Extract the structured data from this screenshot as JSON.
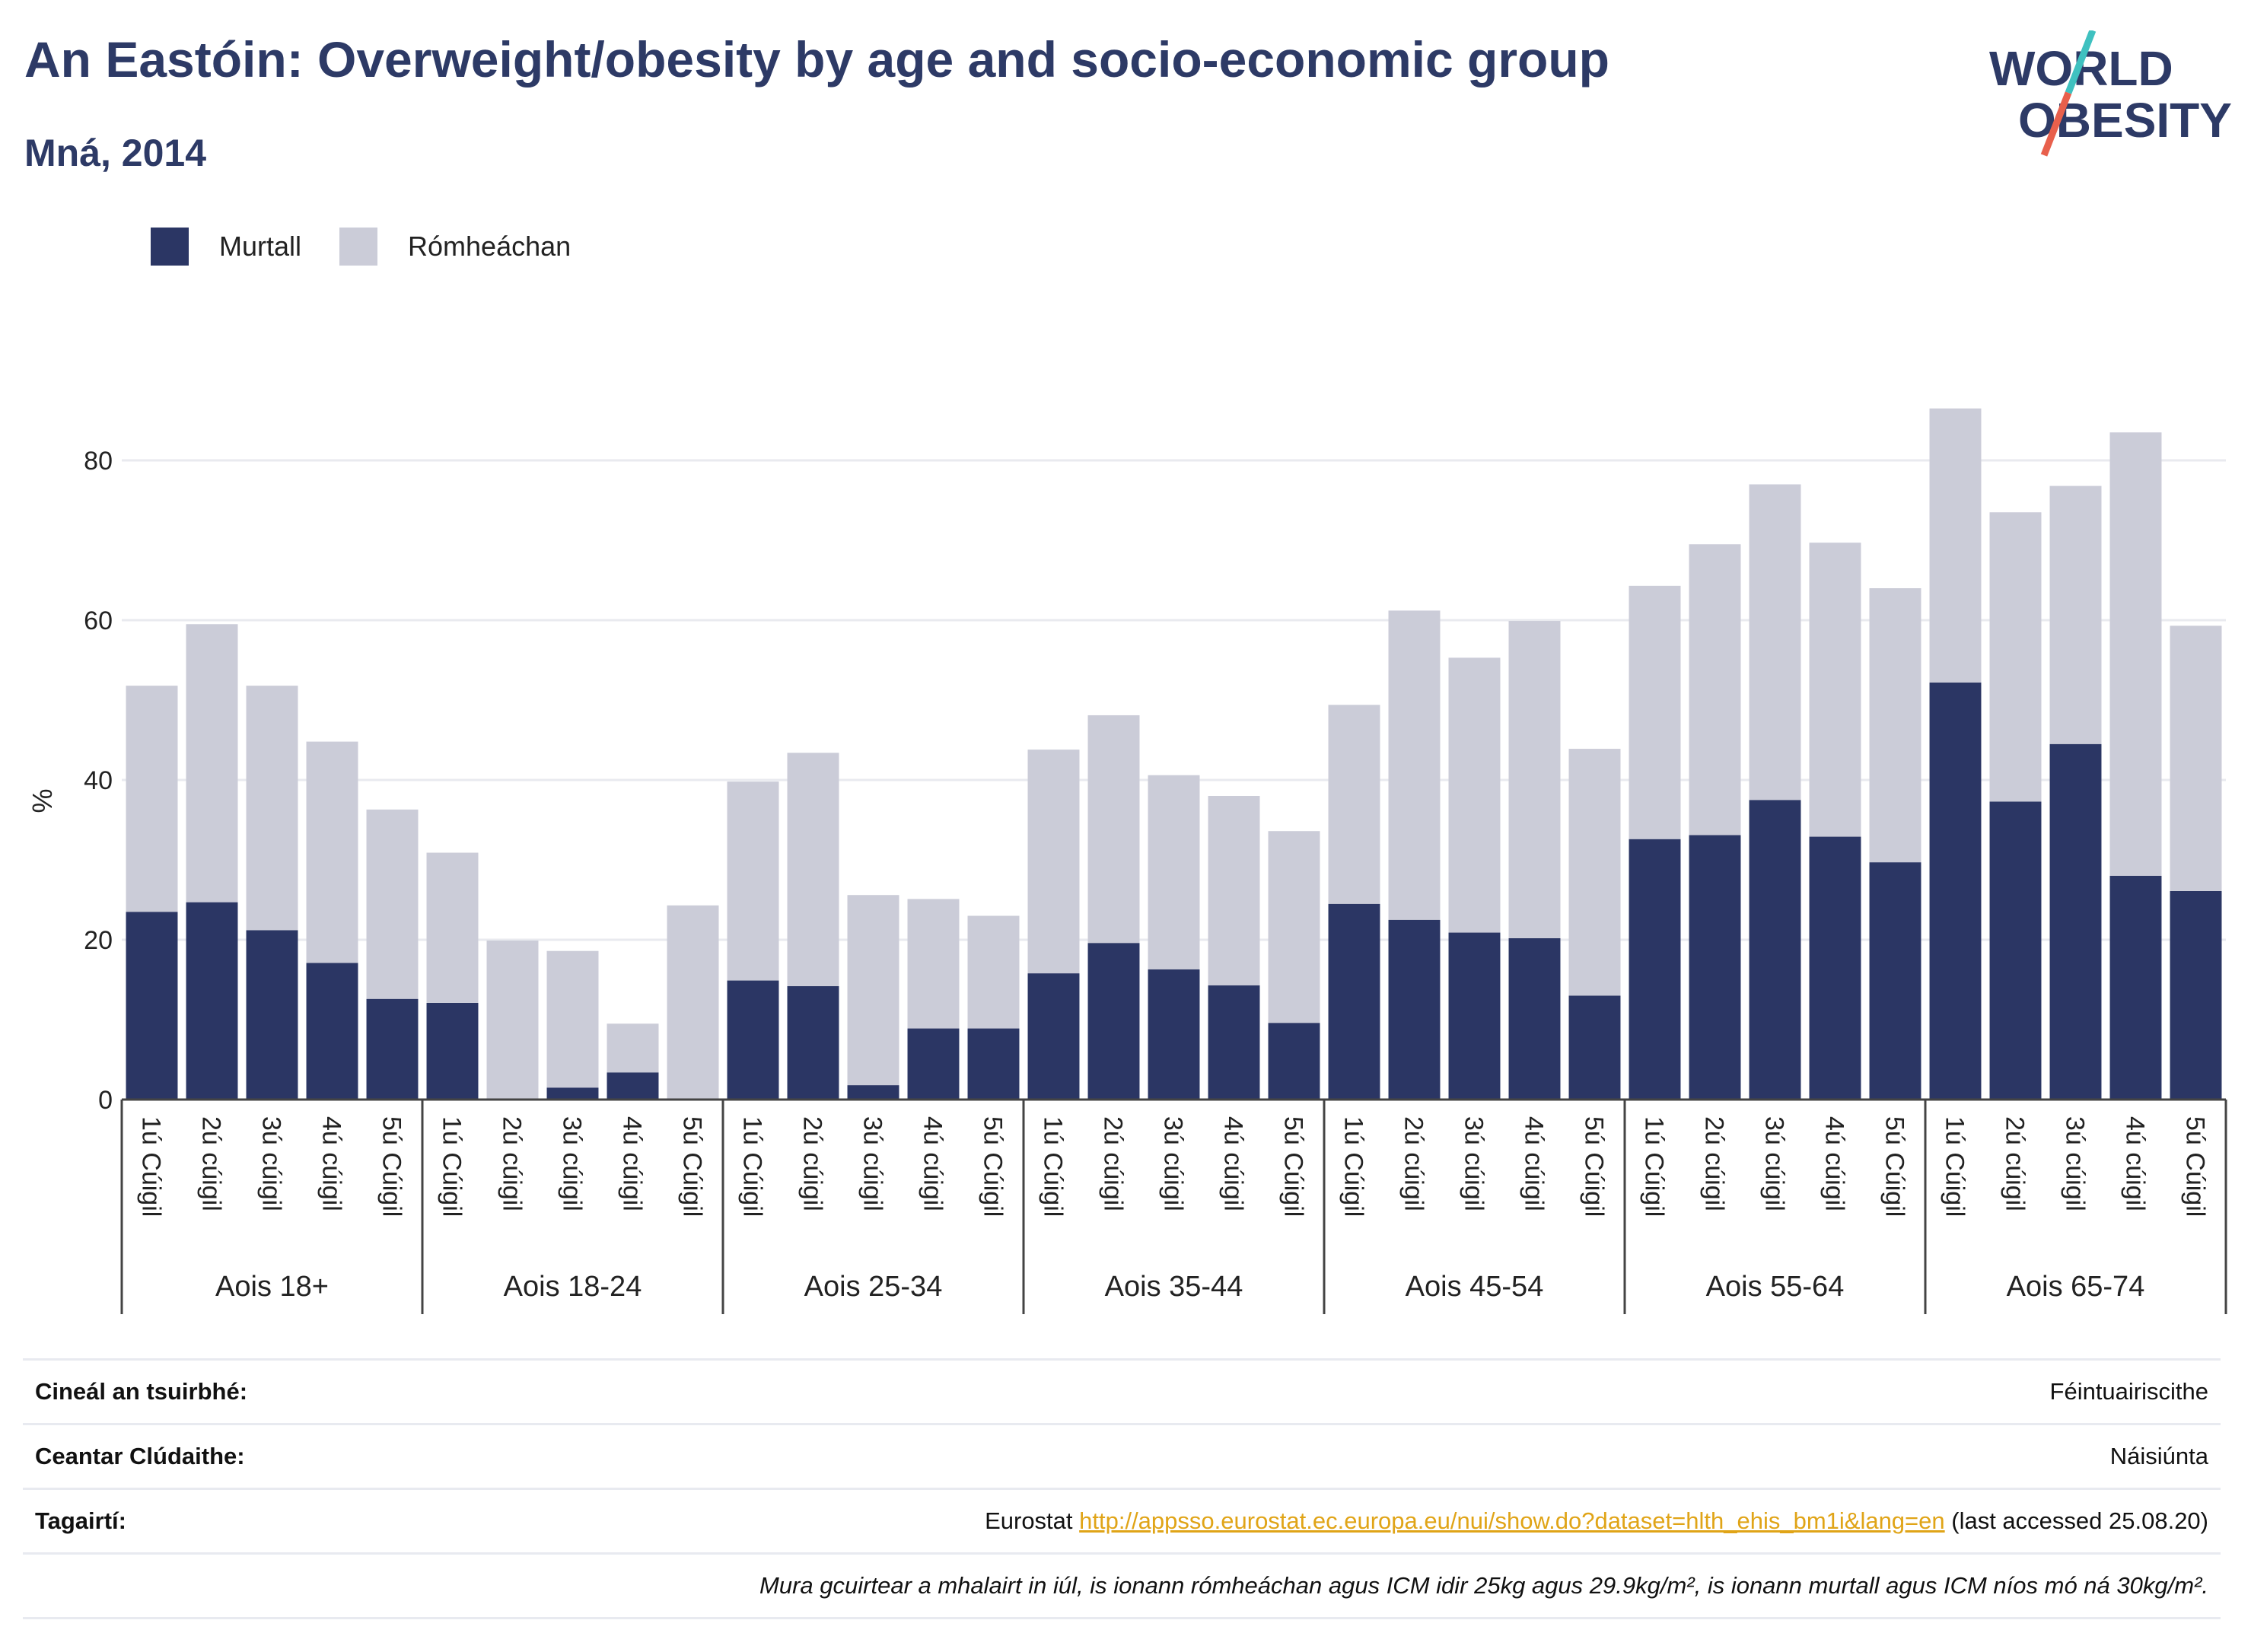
{
  "header": {
    "title": "An Eastóin: Overweight/obesity by age and socio-economic group",
    "subtitle": "Mná, 2014"
  },
  "logo": {
    "line1": "WORLD",
    "line2": "OBESITY",
    "slash_colors": [
      "#3fc1c0",
      "#e8604c"
    ]
  },
  "colors": {
    "obese": "#2b3664",
    "overweight": "#cbccd8",
    "text": "#2d3a66"
  },
  "legend": [
    {
      "label": "Murtall",
      "color": "#2b3664"
    },
    {
      "label": "Rómheáchan",
      "color": "#cbccd8"
    }
  ],
  "chart_data": {
    "type": "bar",
    "stacked": true,
    "ylabel": "%",
    "ylim": [
      0,
      90
    ],
    "yticks": [
      0,
      20,
      40,
      60,
      80
    ],
    "grid": true,
    "legend_position": "top-left",
    "groups": [
      {
        "label": "Aois 18+",
        "categories": [
          "1ú Cúigil",
          "2ú cúigil",
          "3ú cúigil",
          "4ú cúigil",
          "5ú Cúigil"
        ]
      },
      {
        "label": "Aois 18-24",
        "categories": [
          "1ú Cúigil",
          "2ú cúigil",
          "3ú cúigil",
          "4ú cúigil",
          "5ú Cúigil"
        ]
      },
      {
        "label": "Aois 25-34",
        "categories": [
          "1ú Cúigil",
          "2ú cúigil",
          "3ú cúigil",
          "4ú cúigil",
          "5ú Cúigil"
        ]
      },
      {
        "label": "Aois 35-44",
        "categories": [
          "1ú Cúigil",
          "2ú cúigil",
          "3ú cúigil",
          "4ú cúigil",
          "5ú Cúigil"
        ]
      },
      {
        "label": "Aois 45-54",
        "categories": [
          "1ú Cúigil",
          "2ú cúigil",
          "3ú cúigil",
          "4ú cúigil",
          "5ú Cúigil"
        ]
      },
      {
        "label": "Aois 55-64",
        "categories": [
          "1ú Cúigil",
          "2ú cúigil",
          "3ú cúigil",
          "4ú cúigil",
          "5ú Cúigil"
        ]
      },
      {
        "label": "Aois 65-74",
        "categories": [
          "1ú Cúigil",
          "2ú cúigil",
          "3ú cúigil",
          "4ú cúigil",
          "5ú Cúigil"
        ]
      }
    ],
    "series": [
      {
        "name": "Murtall",
        "values": [
          23.5,
          24.7,
          21.2,
          17.1,
          12.6,
          12.1,
          0,
          1.5,
          3.4,
          0,
          14.9,
          14.2,
          1.8,
          8.9,
          8.9,
          15.8,
          19.6,
          16.3,
          14.3,
          9.6,
          24.5,
          22.5,
          20.9,
          20.2,
          13.0,
          32.6,
          33.1,
          37.5,
          32.9,
          29.7,
          52.2,
          37.3,
          44.5,
          28.0,
          26.1
        ]
      },
      {
        "name": "Rómheáchan",
        "values": [
          28.3,
          34.8,
          30.6,
          27.7,
          23.7,
          18.8,
          19.9,
          17.1,
          6.1,
          24.3,
          24.9,
          29.2,
          23.8,
          16.2,
          14.1,
          28.0,
          28.5,
          24.3,
          23.7,
          24.0,
          24.9,
          38.7,
          34.4,
          39.7,
          30.9,
          31.7,
          36.4,
          39.5,
          36.8,
          34.3,
          34.3,
          36.2,
          32.3,
          55.5,
          33.2
        ]
      }
    ]
  },
  "footer": {
    "rows": [
      {
        "label": "Cineál an tsuirbhé:",
        "value": "Féintuairiscithe"
      },
      {
        "label": "Ceantar Clúdaithe:",
        "value": "Náisiúnta"
      }
    ],
    "references": {
      "label": "Tagairtí:",
      "prefix": "Eurostat ",
      "link": "http://appsso.eurostat.ec.europa.eu/nui/show.do?dataset=hlth_ehis_bm1i&lang=en",
      "suffix": " (last accessed 25.08.20)"
    },
    "note": "Mura gcuirtear a mhalairt in iúl, is ionann rómheáchan agus ICM idir 25kg agus 29.9kg/m², is ionann murtall agus ICM níos mó ná 30kg/m²."
  }
}
